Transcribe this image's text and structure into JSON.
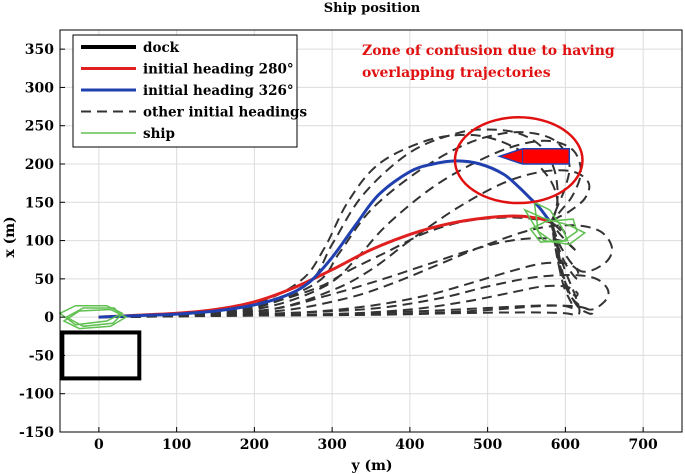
{
  "chart_data": {
    "type": "line",
    "title": "Ship position",
    "xlabel": "y (m)",
    "ylabel": "x (m)",
    "xlim": [
      -50,
      750
    ],
    "ylim": [
      -150,
      375
    ],
    "xticks": [
      0,
      100,
      200,
      300,
      400,
      500,
      600,
      700
    ],
    "yticks": [
      -150,
      -100,
      -50,
      0,
      50,
      100,
      150,
      200,
      250,
      300,
      350
    ],
    "xtick_labels": [
      "0",
      "100",
      "200",
      "300",
      "400",
      "500",
      "600",
      "700"
    ],
    "ytick_labels": [
      "-150",
      "-100",
      "-50",
      "0",
      "50",
      "100",
      "150",
      "200",
      "250",
      "300",
      "350"
    ],
    "grid": true,
    "legend_position": "top-left",
    "annotation": {
      "lines": [
        "Zone of confusion due to having",
        "overlapping trajectories"
      ],
      "color": "#e01010",
      "ellipse": {
        "center": [
          540,
          205
        ],
        "rx": 82,
        "ry": 56
      }
    },
    "series": [
      {
        "name": "dock",
        "style": "rect",
        "color": "#000000",
        "rect": {
          "x0": -47,
          "x1": 52,
          "y0": -80,
          "y1": -20
        }
      },
      {
        "name": "initial heading 280°",
        "style": "solid",
        "color": "#e02020",
        "x": [
          0,
          40,
          100,
          150,
          200,
          250,
          300,
          350,
          400,
          450,
          500,
          540,
          565,
          580
        ],
        "y": [
          0,
          2,
          5,
          10,
          20,
          38,
          62,
          88,
          108,
          122,
          130,
          132,
          129,
          125
        ]
      },
      {
        "name": "initial heading 326°",
        "style": "solid",
        "color": "#2040b0",
        "x": [
          0,
          50,
          100,
          150,
          200,
          240,
          270,
          300,
          330,
          360,
          400,
          430,
          460,
          490,
          520,
          540,
          555,
          565,
          575,
          580
        ],
        "y": [
          0,
          2,
          4,
          8,
          16,
          28,
          45,
          78,
          120,
          160,
          190,
          200,
          204,
          200,
          187,
          170,
          155,
          145,
          132,
          125
        ]
      },
      {
        "name": "other initial headings",
        "style": "dashed",
        "color": "#333333",
        "curves": [
          {
            "x": [
              0,
              100,
              200,
              270,
              300,
              340,
              400,
              460,
              500,
              540,
              570,
              585,
              590,
              588,
              582
            ],
            "y": [
              0,
              3,
              15,
              45,
              95,
              160,
              215,
              240,
              245,
              240,
              222,
              195,
              165,
              140,
              125
            ]
          },
          {
            "x": [
              0,
              100,
              200,
              280,
              310,
              350,
              410,
              470,
              520,
              560,
              590,
              605,
              600,
              590,
              582
            ],
            "y": [
              0,
              3,
              12,
              45,
              85,
              140,
              190,
              225,
              240,
              240,
              228,
              200,
              170,
              145,
              125
            ]
          },
          {
            "x": [
              0,
              100,
              210,
              290,
              330,
              370,
              430,
              490,
              540,
              580,
              610,
              620,
              610,
              595,
              582
            ],
            "y": [
              0,
              3,
              12,
              40,
              75,
              120,
              170,
              205,
              225,
              230,
              218,
              190,
              160,
              140,
              125
            ]
          },
          {
            "x": [
              0,
              100,
              220,
              300,
              350,
              400,
              460,
              520,
              570,
              610,
              630,
              625,
              605,
              590,
              582
            ],
            "y": [
              0,
              3,
              10,
              35,
              62,
              100,
              142,
              175,
              190,
              190,
              175,
              155,
              138,
              130,
              125
            ]
          },
          {
            "x": [
              0,
              100,
              230,
              320,
              380,
              440,
              500,
              560,
              610,
              645,
              660,
              650,
              620,
              595,
              582
            ],
            "y": [
              0,
              2,
              8,
              25,
              45,
              70,
              95,
              115,
              120,
              112,
              90,
              70,
              60,
              90,
              125
            ]
          },
          {
            "x": [
              0,
              120,
              260,
              360,
              440,
              500,
              560,
              610,
              640,
              655,
              650,
              630,
              605,
              590,
              582
            ],
            "y": [
              0,
              2,
              6,
              12,
              25,
              40,
              52,
              55,
              50,
              35,
              20,
              10,
              30,
              80,
              125
            ]
          },
          {
            "x": [
              0,
              150,
              300,
              420,
              500,
              560,
              600,
              625,
              635,
              630,
              615,
              600,
              590,
              582
            ],
            "y": [
              0,
              2,
              4,
              8,
              12,
              15,
              15,
              12,
              6,
              5,
              15,
              45,
              90,
              125
            ]
          },
          {
            "x": [
              0,
              200,
              350,
              450,
              520,
              570,
              600,
              615,
              618,
              612,
              600,
              590,
              585,
              582
            ],
            "y": [
              0,
              2,
              3,
              5,
              6,
              6,
              5,
              3,
              10,
              30,
              60,
              90,
              110,
              125
            ]
          },
          {
            "x": [
              0,
              100,
              200,
              260,
              290,
              320,
              360,
              420,
              470,
              510,
              550,
              580,
              590,
              585,
              582
            ],
            "y": [
              0,
              3,
              18,
              48,
              90,
              150,
              200,
              230,
              238,
              232,
              212,
              180,
              150,
              132,
              125
            ]
          },
          {
            "x": [
              0,
              100,
              200,
              280,
              320,
              370,
              420,
              470,
              520,
              560,
              590,
              600,
              592,
              582
            ],
            "y": [
              0,
              3,
              14,
              38,
              60,
              85,
              110,
              125,
              130,
              128,
              120,
              108,
              115,
              125
            ]
          },
          {
            "x": [
              0,
              100,
              220,
              300,
              360,
              420,
              480,
              530,
              570,
              600,
              615,
              605,
              590,
              582
            ],
            "y": [
              0,
              2,
              10,
              30,
              48,
              68,
              88,
              100,
              103,
              98,
              85,
              95,
              112,
              125
            ]
          },
          {
            "x": [
              0,
              130,
              260,
              350,
              420,
              480,
              530,
              570,
              600,
              615,
              615,
              600,
              588,
              582
            ],
            "y": [
              0,
              2,
              6,
              15,
              28,
              45,
              60,
              70,
              70,
              62,
              50,
              70,
              100,
              125
            ]
          },
          {
            "x": [
              0,
              160,
              300,
              400,
              470,
              530,
              570,
              600,
              615,
              612,
              600,
              590,
              584,
              582
            ],
            "y": [
              0,
              2,
              4,
              10,
              20,
              32,
              40,
              40,
              32,
              28,
              45,
              80,
              110,
              125
            ]
          },
          {
            "x": [
              0,
              180,
              330,
              440,
              510,
              560,
              595,
              610,
              608,
              598,
              590,
              585,
              582
            ],
            "y": [
              0,
              2,
              3,
              6,
              10,
              14,
              15,
              12,
              18,
              40,
              75,
              105,
              125
            ]
          }
        ]
      },
      {
        "name": "ship",
        "style": "outline",
        "color": "#60c050",
        "shapes": [
          {
            "x": [
              -50,
              -30,
              10,
              30,
              10,
              -30,
              -50
            ],
            "y": [
              5,
              15,
              15,
              5,
              -5,
              -10,
              5
            ]
          },
          {
            "x": [
              -45,
              -25,
              15,
              35,
              15,
              -25,
              -45
            ],
            "y": [
              -5,
              8,
              10,
              0,
              -12,
              -15,
              -5
            ]
          },
          {
            "x": [
              -42,
              -20,
              20,
              28,
              18,
              -20,
              -42
            ],
            "y": [
              0,
              12,
              12,
              2,
              -8,
              -12,
              0
            ]
          },
          {
            "x": [
              548,
              570,
              605,
              625,
              605,
              572,
              548
            ],
            "y": [
              140,
              130,
              120,
              110,
              95,
              100,
              140
            ]
          },
          {
            "x": [
              555,
              575,
              610,
              615,
              598,
              568,
              555
            ],
            "y": [
              115,
              125,
              128,
              112,
              100,
              98,
              115
            ]
          },
          {
            "x": [
              560,
              580,
              595,
              603,
              585,
              565,
              560
            ],
            "y": [
              150,
              140,
              118,
              100,
              98,
              112,
              150
            ]
          }
        ]
      }
    ],
    "red_ship": {
      "x": [
        515,
        545,
        605,
        605,
        545,
        515
      ],
      "y": [
        210,
        220,
        220,
        200,
        200,
        210
      ],
      "color": "#ff0000"
    }
  }
}
